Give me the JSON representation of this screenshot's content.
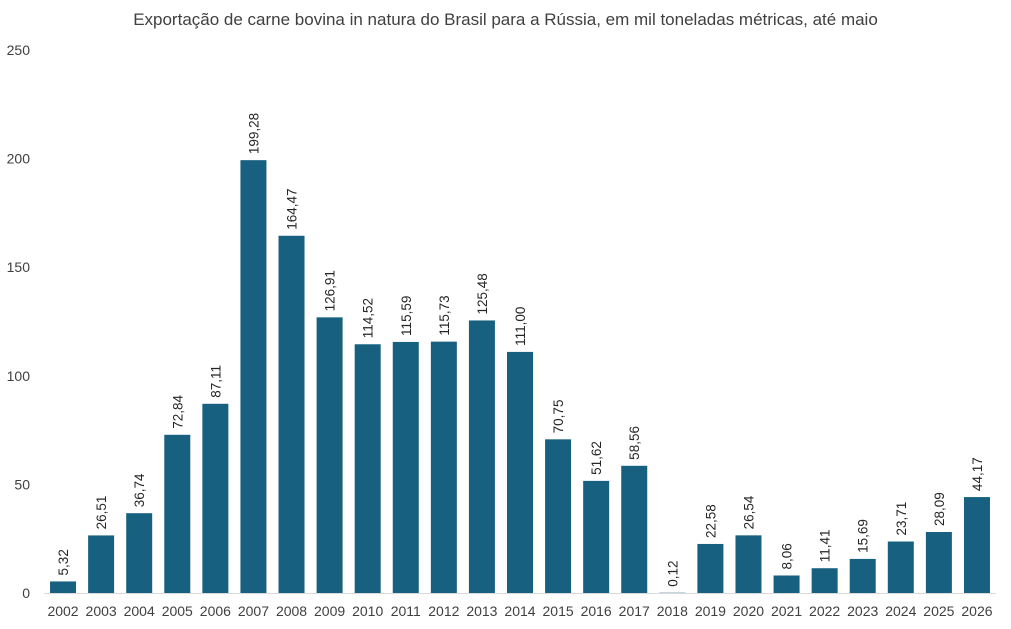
{
  "chart_data": {
    "type": "bar",
    "title": "Exportação de carne bovina in natura do Brasil para a Rússia, em mil toneladas métricas, até maio",
    "xlabel": "",
    "ylabel": "",
    "ylim": [
      0,
      250
    ],
    "yticks": [
      0,
      50,
      100,
      150,
      200,
      250
    ],
    "grid": false,
    "bar_color": "#17607F",
    "categories": [
      "2002",
      "2003",
      "2004",
      "2005",
      "2006",
      "2007",
      "2008",
      "2009",
      "2010",
      "2011",
      "2012",
      "2013",
      "2014",
      "2015",
      "2016",
      "2017",
      "2018",
      "2019",
      "2020",
      "2021",
      "2022",
      "2023",
      "2024",
      "2025",
      "2026"
    ],
    "values": [
      5.32,
      26.51,
      36.74,
      72.84,
      87.11,
      199.28,
      164.47,
      126.91,
      114.52,
      115.59,
      115.73,
      125.48,
      111.0,
      70.75,
      51.62,
      58.56,
      0.12,
      22.58,
      26.54,
      8.06,
      11.41,
      15.69,
      23.71,
      28.09,
      44.17
    ],
    "data_labels": [
      "5,32",
      "26,51",
      "36,74",
      "72,84",
      "87,11",
      "199,28",
      "164,47",
      "126,91",
      "114,52",
      "115,59",
      "115,73",
      "125,48",
      "111,00",
      "70,75",
      "51,62",
      "58,56",
      "0,12",
      "22,58",
      "26,54",
      "8,06",
      "11,41",
      "15,69",
      "23,71",
      "28,09",
      "44,17"
    ]
  }
}
